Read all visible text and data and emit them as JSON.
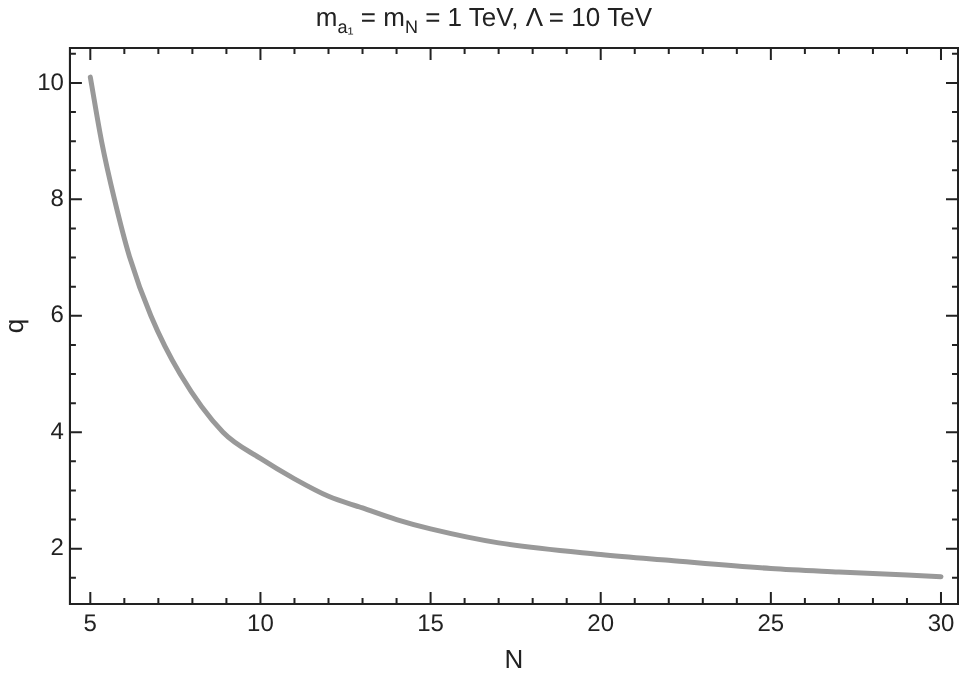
{
  "chart_data": {
    "type": "line",
    "title": "m$_{a₁}$ = m$_{N}$ = 1 TeV, Λ = 10 TeV",
    "xlabel": "N",
    "ylabel": "q",
    "x": [
      5,
      5.33,
      5.71,
      6.16,
      6.78,
      7.64,
      8.9,
      10,
      11,
      12,
      13,
      14,
      15,
      17,
      20,
      22,
      25,
      27,
      30
    ],
    "series": [
      {
        "color": "#999999",
        "values": [
          10.1,
          9,
          8,
          7,
          6,
          5,
          4,
          3.55,
          3.2,
          2.9,
          2.7,
          2.5,
          2.34,
          2.1,
          1.9,
          1.8,
          1.66,
          1.6,
          1.52
        ]
      }
    ],
    "xlim": [
      4.4,
      30.5
    ],
    "ylim": [
      1.05,
      10.6
    ],
    "xticks": [
      5,
      {
        "value": 6,
        "label": null
      },
      {
        "value": 7,
        "label": null
      },
      {
        "value": 8,
        "label": null
      },
      {
        "value": 9,
        "label": null
      },
      10,
      {
        "value": 11,
        "label": null
      },
      {
        "value": 12,
        "label": null
      },
      {
        "value": 13,
        "label": null
      },
      {
        "value": 14,
        "label": null
      },
      15,
      {
        "value": 16,
        "label": null
      },
      {
        "value": 17,
        "label": null
      },
      {
        "value": 18,
        "label": null
      },
      {
        "value": 19,
        "label": null
      },
      20,
      {
        "value": 21,
        "label": null
      },
      {
        "value": 22,
        "label": null
      },
      {
        "value": 23,
        "label": null
      },
      {
        "value": 24,
        "label": null
      },
      25,
      {
        "value": 26,
        "label": null
      },
      {
        "value": 27,
        "label": null
      },
      {
        "value": 28,
        "label": null
      },
      {
        "value": 29,
        "label": null
      },
      30
    ],
    "yticks": [
      {
        "value": 1.5,
        "label": null
      },
      2,
      {
        "value": 2.5,
        "label": null
      },
      {
        "value": 3,
        "label": null
      },
      {
        "value": 3.5,
        "label": null
      },
      4,
      {
        "value": 4.5,
        "label": null
      },
      {
        "value": 5,
        "label": null
      },
      {
        "value": 5.5,
        "label": null
      },
      6,
      {
        "value": 6.5,
        "label": null
      },
      {
        "value": 7,
        "label": null
      },
      {
        "value": 7.5,
        "label": null
      },
      8,
      {
        "value": 8.5,
        "label": null
      },
      {
        "value": 9,
        "label": null
      },
      {
        "value": 9.5,
        "label": null
      },
      10,
      {
        "value": 10.5,
        "label": null
      }
    ],
    "grid": false,
    "legend": false,
    "marker": "none",
    "line_style": "solid"
  }
}
